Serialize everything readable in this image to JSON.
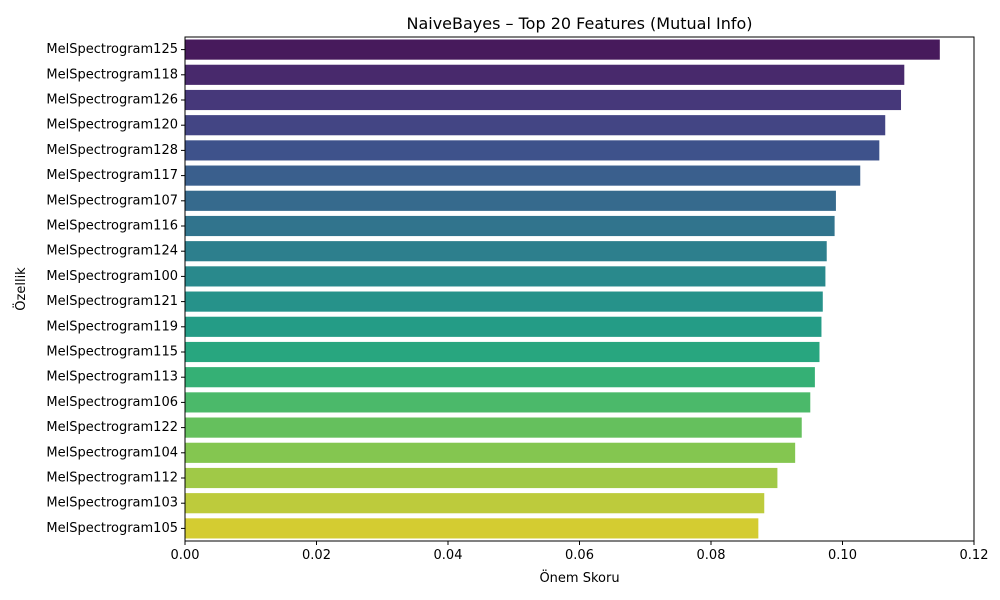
{
  "chart_data": {
    "type": "bar",
    "orientation": "horizontal",
    "title": "NaiveBayes – Top 20 Features (Mutual Info)",
    "xlabel": "Önem Skoru",
    "ylabel": "Özellik",
    "xlim": [
      0,
      0.12
    ],
    "xticks": [
      "0.00",
      "0.02",
      "0.04",
      "0.06",
      "0.08",
      "0.10",
      "0.12"
    ],
    "xtick_values": [
      0,
      0.02,
      0.04,
      0.06,
      0.08,
      0.1,
      0.12
    ],
    "grid": false,
    "legend": "none",
    "colormap": "viridis",
    "categories": [
      "MelSpectrogram125",
      "MelSpectrogram118",
      "MelSpectrogram126",
      "MelSpectrogram120",
      "MelSpectrogram128",
      "MelSpectrogram117",
      "MelSpectrogram107",
      "MelSpectrogram116",
      "MelSpectrogram124",
      "MelSpectrogram100",
      "MelSpectrogram121",
      "MelSpectrogram119",
      "MelSpectrogram115",
      "MelSpectrogram113",
      "MelSpectrogram106",
      "MelSpectrogram122",
      "MelSpectrogram104",
      "MelSpectrogram112",
      "MelSpectrogram103",
      "MelSpectrogram105"
    ],
    "values": [
      0.1148,
      0.1094,
      0.1089,
      0.1065,
      0.1056,
      0.1027,
      0.099,
      0.0988,
      0.0976,
      0.0974,
      0.097,
      0.0968,
      0.0965,
      0.0958,
      0.0951,
      0.0938,
      0.0928,
      0.0901,
      0.0881,
      0.0872
    ],
    "colors": [
      "#471a5c",
      "#48296c",
      "#46387a",
      "#434584",
      "#3e528b",
      "#3a5f8d",
      "#366a8d",
      "#31748d",
      "#2d7f8d",
      "#29898c",
      "#26928a",
      "#249c86",
      "#28a67f",
      "#35b075",
      "#4bb96a",
      "#65c05d",
      "#84c650",
      "#a0c947",
      "#bdcb3c",
      "#d4cc31"
    ]
  }
}
